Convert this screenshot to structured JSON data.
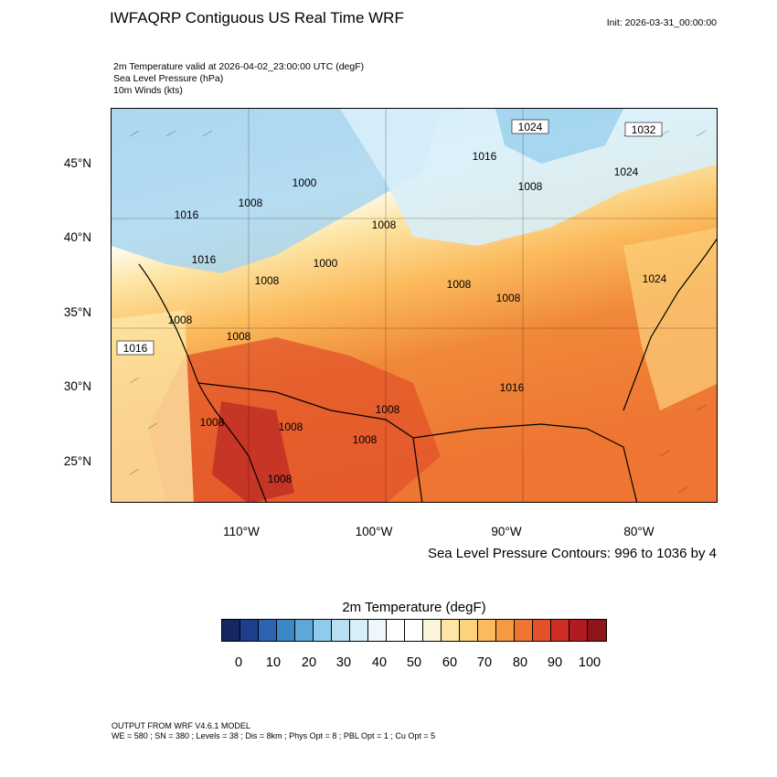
{
  "header": {
    "title": "IWFAQRP Contiguous US Real Time WRF",
    "init": "Init: 2026-03-31_00:00:00",
    "subtitle_lines": [
      "2m Temperature valid at 2026-04-02_23:00:00 UTC   (degF)",
      "Sea Level Pressure   (hPa)",
      "10m Winds   (kts)"
    ]
  },
  "map": {
    "lat_labels": [
      "45°N",
      "40°N",
      "35°N",
      "30°N",
      "25°N"
    ],
    "lon_labels": [
      "110°W",
      "100°W",
      "90°W",
      "80°W"
    ],
    "contour_note": "Sea Level Pressure Contours: 996 to 1036 by 4",
    "slp_labels": [
      "1024",
      "1032",
      "1016",
      "1008",
      "1024",
      "1000",
      "1008",
      "1016",
      "1008",
      "1016",
      "1000",
      "1008",
      "1008",
      "1008",
      "1024",
      "1008",
      "1016",
      "1008",
      "1016",
      "1008",
      "1008",
      "1008",
      "1008",
      "1008",
      "1008"
    ]
  },
  "colorbar": {
    "title": "2m Temperature  (degF)",
    "colors": [
      "#16265e",
      "#1e3f8e",
      "#2b64b2",
      "#3c87c6",
      "#5ea8d8",
      "#8fcbec",
      "#b7def3",
      "#d8eef8",
      "#eef8fc",
      "#ffffff",
      "#ffffff",
      "#fdf5da",
      "#fde6a5",
      "#fcd27c",
      "#fbba5b",
      "#f69a40",
      "#ee7532",
      "#e3512a",
      "#cd2e26",
      "#b11b22",
      "#8f1519"
    ],
    "ticks": [
      "0",
      "10",
      "20",
      "30",
      "40",
      "50",
      "60",
      "70",
      "80",
      "90",
      "100"
    ]
  },
  "footer": {
    "line1": "OUTPUT FROM WRF V4.6.1 MODEL",
    "line2": "WE = 580 ; SN = 380 ; Levels = 38 ; Dis = 8km ; Phys Opt = 8 ; PBL Opt = 1 ; Cu Opt = 5"
  }
}
